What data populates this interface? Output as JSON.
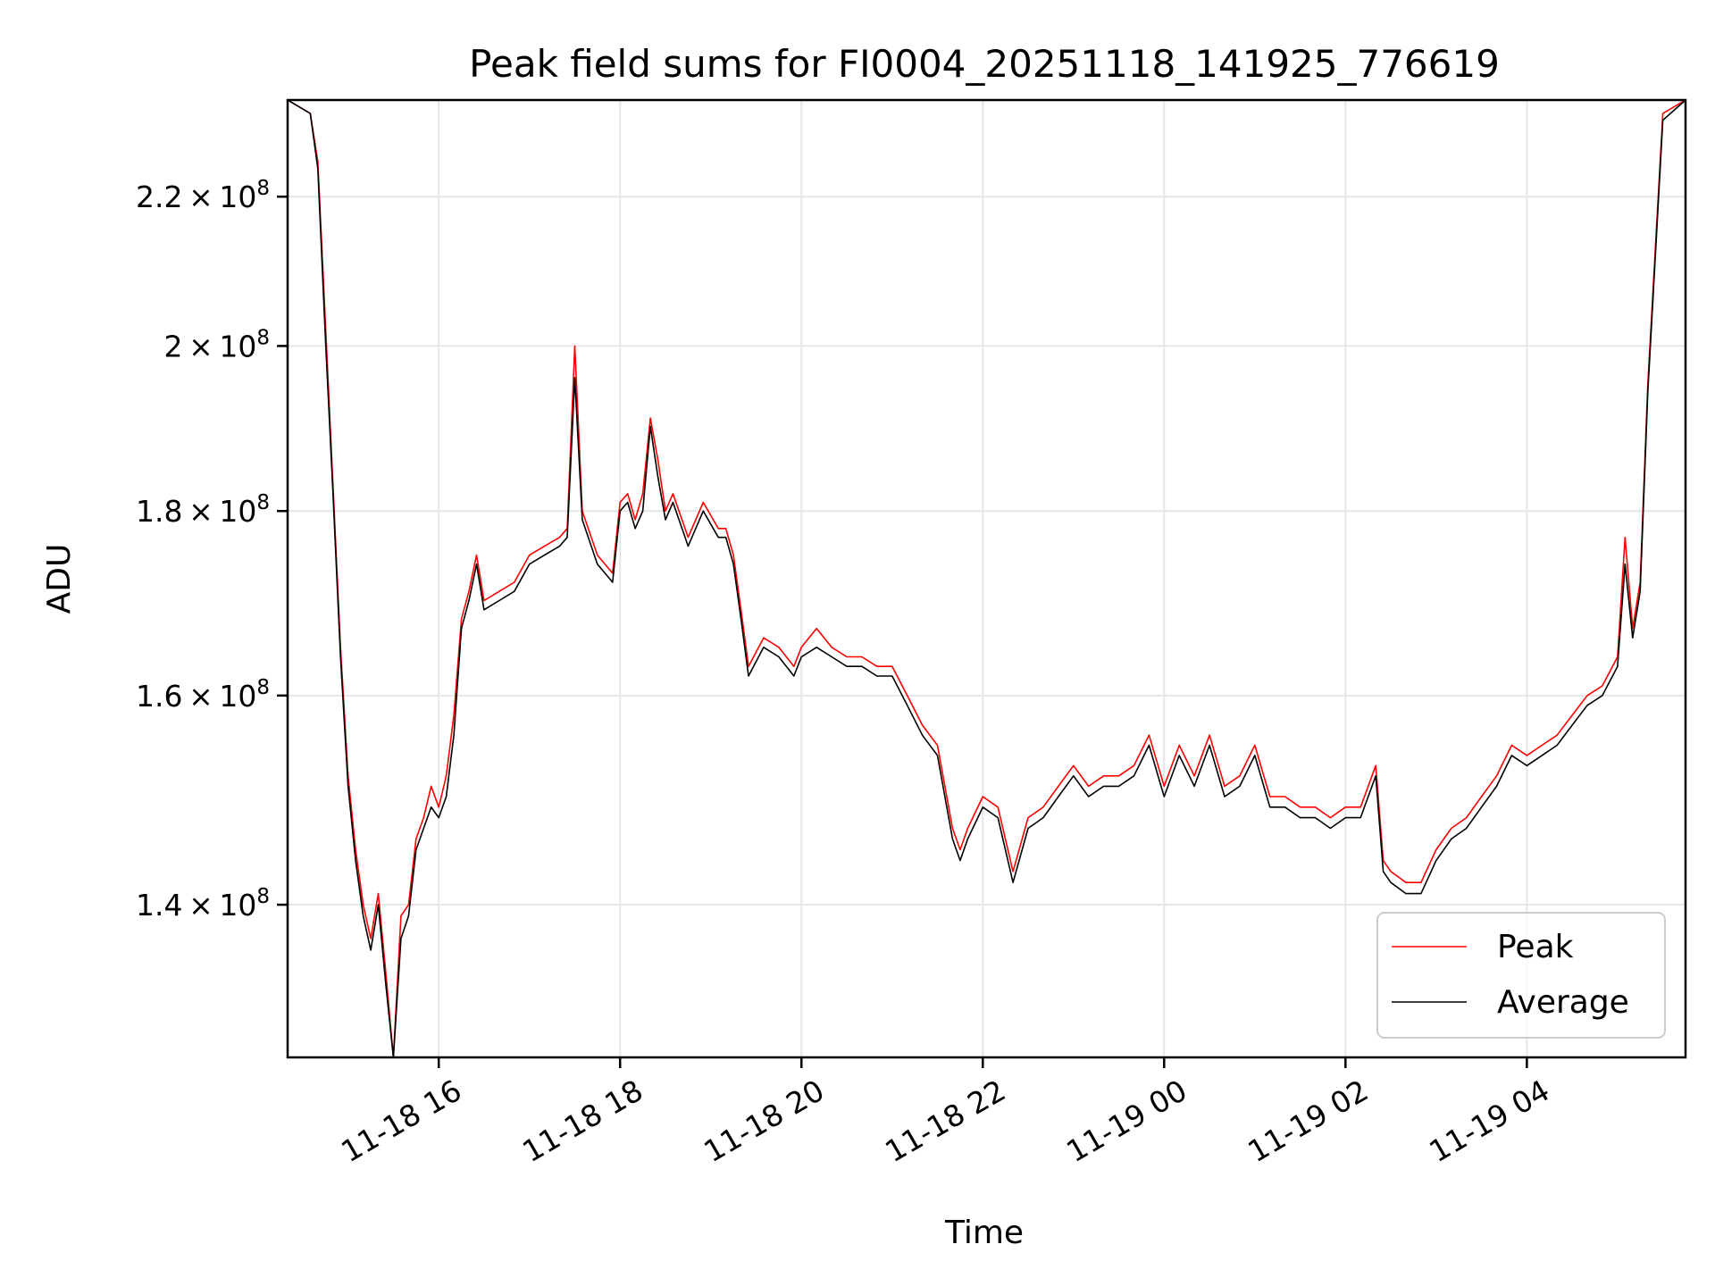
{
  "chart_data": {
    "type": "line",
    "title": "Peak field sums for FI0004_20251118_141925_776619",
    "xlabel": "Time",
    "ylabel": "ADU",
    "y_scale": "log",
    "grid": true,
    "legend_placement": "lower-right",
    "xlim": [
      "2025-11-18 14:20",
      "2025-11-19 05:45"
    ],
    "ylim": [
      127000000,
      234000000
    ],
    "x_ticks": [
      {
        "value": "2025-11-18 16:00",
        "label": "11-18 16"
      },
      {
        "value": "2025-11-18 18:00",
        "label": "11-18 18"
      },
      {
        "value": "2025-11-18 20:00",
        "label": "11-18 20"
      },
      {
        "value": "2025-11-18 22:00",
        "label": "11-18 22"
      },
      {
        "value": "2025-11-19 00:00",
        "label": "11-19 00"
      },
      {
        "value": "2025-11-19 02:00",
        "label": "11-19 02"
      },
      {
        "value": "2025-11-19 04:00",
        "label": "11-19 04"
      }
    ],
    "y_ticks": [
      {
        "value": 140000000,
        "mantissa": "1.4",
        "exponent": "8"
      },
      {
        "value": 160000000,
        "mantissa": "1.6",
        "exponent": "8"
      },
      {
        "value": 180000000,
        "mantissa": "1.8",
        "exponent": "8"
      },
      {
        "value": 200000000,
        "mantissa": "2",
        "exponent": "8"
      },
      {
        "value": 220000000,
        "mantissa": "2.2",
        "exponent": "8"
      }
    ],
    "series": [
      {
        "name": "Peak",
        "color": "#ff0000",
        "x": [
          "2025-11-18 14:20",
          "2025-11-18 14:35",
          "2025-11-18 14:40",
          "2025-11-18 14:45",
          "2025-11-18 14:50",
          "2025-11-18 14:55",
          "2025-11-18 15:00",
          "2025-11-18 15:05",
          "2025-11-18 15:10",
          "2025-11-18 15:15",
          "2025-11-18 15:20",
          "2025-11-18 15:25",
          "2025-11-18 15:30",
          "2025-11-18 15:35",
          "2025-11-18 15:40",
          "2025-11-18 15:45",
          "2025-11-18 15:50",
          "2025-11-18 15:55",
          "2025-11-18 16:00",
          "2025-11-18 16:05",
          "2025-11-18 16:10",
          "2025-11-18 16:15",
          "2025-11-18 16:20",
          "2025-11-18 16:25",
          "2025-11-18 16:30",
          "2025-11-18 16:40",
          "2025-11-18 16:50",
          "2025-11-18 17:00",
          "2025-11-18 17:10",
          "2025-11-18 17:20",
          "2025-11-18 17:25",
          "2025-11-18 17:30",
          "2025-11-18 17:35",
          "2025-11-18 17:45",
          "2025-11-18 17:55",
          "2025-11-18 18:00",
          "2025-11-18 18:05",
          "2025-11-18 18:10",
          "2025-11-18 18:15",
          "2025-11-18 18:20",
          "2025-11-18 18:25",
          "2025-11-18 18:30",
          "2025-11-18 18:35",
          "2025-11-18 18:45",
          "2025-11-18 18:55",
          "2025-11-18 19:05",
          "2025-11-18 19:10",
          "2025-11-18 19:15",
          "2025-11-18 19:20",
          "2025-11-18 19:25",
          "2025-11-18 19:35",
          "2025-11-18 19:45",
          "2025-11-18 19:55",
          "2025-11-18 20:00",
          "2025-11-18 20:10",
          "2025-11-18 20:20",
          "2025-11-18 20:30",
          "2025-11-18 20:40",
          "2025-11-18 20:50",
          "2025-11-18 21:00",
          "2025-11-18 21:10",
          "2025-11-18 21:20",
          "2025-11-18 21:30",
          "2025-11-18 21:40",
          "2025-11-18 21:45",
          "2025-11-18 21:50",
          "2025-11-18 22:00",
          "2025-11-18 22:10",
          "2025-11-18 22:20",
          "2025-11-18 22:30",
          "2025-11-18 22:40",
          "2025-11-18 22:50",
          "2025-11-18 23:00",
          "2025-11-18 23:10",
          "2025-11-18 23:20",
          "2025-11-18 23:30",
          "2025-11-18 23:40",
          "2025-11-18 23:50",
          "2025-11-19 00:00",
          "2025-11-19 00:10",
          "2025-11-19 00:20",
          "2025-11-19 00:30",
          "2025-11-19 00:40",
          "2025-11-19 00:50",
          "2025-11-19 01:00",
          "2025-11-19 01:10",
          "2025-11-19 01:20",
          "2025-11-19 01:30",
          "2025-11-19 01:40",
          "2025-11-19 01:50",
          "2025-11-19 02:00",
          "2025-11-19 02:10",
          "2025-11-19 02:20",
          "2025-11-19 02:25",
          "2025-11-19 02:30",
          "2025-11-19 02:40",
          "2025-11-19 02:50",
          "2025-11-19 03:00",
          "2025-11-19 03:10",
          "2025-11-19 03:20",
          "2025-11-19 03:30",
          "2025-11-19 03:40",
          "2025-11-19 03:50",
          "2025-11-19 04:00",
          "2025-11-19 04:10",
          "2025-11-19 04:20",
          "2025-11-19 04:30",
          "2025-11-19 04:40",
          "2025-11-19 04:50",
          "2025-11-19 05:00",
          "2025-11-19 05:05",
          "2025-11-19 05:10",
          "2025-11-19 05:15",
          "2025-11-19 05:20",
          "2025-11-19 05:30",
          "2025-11-19 05:45"
        ],
        "values": [
          234000000,
          232000000,
          225000000,
          203000000,
          183000000,
          165000000,
          152000000,
          145000000,
          140000000,
          137000000,
          141000000,
          134000000,
          127000000,
          139000000,
          140000000,
          146000000,
          148000000,
          151000000,
          149000000,
          152000000,
          158000000,
          168000000,
          171000000,
          175000000,
          170000000,
          171000000,
          172000000,
          175000000,
          176000000,
          177000000,
          178000000,
          200000000,
          180000000,
          175000000,
          173000000,
          181000000,
          182000000,
          179000000,
          182000000,
          191000000,
          186000000,
          180000000,
          182000000,
          177000000,
          181000000,
          178000000,
          178000000,
          175000000,
          169000000,
          163000000,
          166000000,
          165000000,
          163000000,
          165000000,
          167000000,
          165000000,
          164000000,
          164000000,
          163000000,
          163000000,
          160000000,
          157000000,
          155000000,
          147000000,
          145000000,
          147000000,
          150000000,
          149000000,
          143000000,
          148000000,
          149000000,
          151000000,
          153000000,
          151000000,
          152000000,
          152000000,
          153000000,
          156000000,
          151000000,
          155000000,
          152000000,
          156000000,
          151000000,
          152000000,
          155000000,
          150000000,
          150000000,
          149000000,
          149000000,
          148000000,
          149000000,
          149000000,
          153000000,
          144000000,
          143000000,
          142000000,
          142000000,
          145000000,
          147000000,
          148000000,
          150000000,
          152000000,
          155000000,
          154000000,
          155000000,
          156000000,
          158000000,
          160000000,
          161000000,
          164000000,
          177000000,
          167000000,
          172000000,
          195000000,
          232000000,
          234000000
        ]
      },
      {
        "name": "Average",
        "color": "#000000",
        "x": [
          "2025-11-18 14:20",
          "2025-11-18 14:35",
          "2025-11-18 14:40",
          "2025-11-18 14:45",
          "2025-11-18 14:50",
          "2025-11-18 14:55",
          "2025-11-18 15:00",
          "2025-11-18 15:05",
          "2025-11-18 15:10",
          "2025-11-18 15:15",
          "2025-11-18 15:20",
          "2025-11-18 15:25",
          "2025-11-18 15:30",
          "2025-11-18 15:35",
          "2025-11-18 15:40",
          "2025-11-18 15:45",
          "2025-11-18 15:50",
          "2025-11-18 15:55",
          "2025-11-18 16:00",
          "2025-11-18 16:05",
          "2025-11-18 16:10",
          "2025-11-18 16:15",
          "2025-11-18 16:20",
          "2025-11-18 16:25",
          "2025-11-18 16:30",
          "2025-11-18 16:40",
          "2025-11-18 16:50",
          "2025-11-18 17:00",
          "2025-11-18 17:10",
          "2025-11-18 17:20",
          "2025-11-18 17:25",
          "2025-11-18 17:30",
          "2025-11-18 17:35",
          "2025-11-18 17:45",
          "2025-11-18 17:55",
          "2025-11-18 18:00",
          "2025-11-18 18:05",
          "2025-11-18 18:10",
          "2025-11-18 18:15",
          "2025-11-18 18:20",
          "2025-11-18 18:25",
          "2025-11-18 18:30",
          "2025-11-18 18:35",
          "2025-11-18 18:45",
          "2025-11-18 18:55",
          "2025-11-18 19:05",
          "2025-11-18 19:10",
          "2025-11-18 19:15",
          "2025-11-18 19:20",
          "2025-11-18 19:25",
          "2025-11-18 19:35",
          "2025-11-18 19:45",
          "2025-11-18 19:55",
          "2025-11-18 20:00",
          "2025-11-18 20:10",
          "2025-11-18 20:20",
          "2025-11-18 20:30",
          "2025-11-18 20:40",
          "2025-11-18 20:50",
          "2025-11-18 21:00",
          "2025-11-18 21:10",
          "2025-11-18 21:20",
          "2025-11-18 21:30",
          "2025-11-18 21:40",
          "2025-11-18 21:45",
          "2025-11-18 21:50",
          "2025-11-18 22:00",
          "2025-11-18 22:10",
          "2025-11-18 22:20",
          "2025-11-18 22:30",
          "2025-11-18 22:40",
          "2025-11-18 22:50",
          "2025-11-18 23:00",
          "2025-11-18 23:10",
          "2025-11-18 23:20",
          "2025-11-18 23:30",
          "2025-11-18 23:40",
          "2025-11-18 23:50",
          "2025-11-19 00:00",
          "2025-11-19 00:10",
          "2025-11-19 00:20",
          "2025-11-19 00:30",
          "2025-11-19 00:40",
          "2025-11-19 00:50",
          "2025-11-19 01:00",
          "2025-11-19 01:10",
          "2025-11-19 01:20",
          "2025-11-19 01:30",
          "2025-11-19 01:40",
          "2025-11-19 01:50",
          "2025-11-19 02:00",
          "2025-11-19 02:10",
          "2025-11-19 02:20",
          "2025-11-19 02:25",
          "2025-11-19 02:30",
          "2025-11-19 02:40",
          "2025-11-19 02:50",
          "2025-11-19 03:00",
          "2025-11-19 03:10",
          "2025-11-19 03:20",
          "2025-11-19 03:30",
          "2025-11-19 03:40",
          "2025-11-19 03:50",
          "2025-11-19 04:00",
          "2025-11-19 04:10",
          "2025-11-19 04:20",
          "2025-11-19 04:30",
          "2025-11-19 04:40",
          "2025-11-19 04:50",
          "2025-11-19 05:00",
          "2025-11-19 05:05",
          "2025-11-19 05:10",
          "2025-11-19 05:15",
          "2025-11-19 05:20",
          "2025-11-19 05:30",
          "2025-11-19 05:45"
        ],
        "values": [
          234000000,
          232000000,
          224000000,
          201000000,
          182000000,
          164000000,
          151000000,
          144000000,
          139000000,
          136000000,
          140000000,
          133000000,
          127000000,
          137000000,
          139000000,
          145000000,
          147000000,
          149000000,
          148000000,
          150000000,
          156000000,
          167000000,
          170000000,
          174000000,
          169000000,
          170000000,
          171000000,
          174000000,
          175000000,
          176000000,
          177000000,
          196000000,
          179000000,
          174000000,
          172000000,
          180000000,
          181000000,
          178000000,
          180000000,
          190000000,
          184000000,
          179000000,
          181000000,
          176000000,
          180000000,
          177000000,
          177000000,
          174000000,
          168000000,
          162000000,
          165000000,
          164000000,
          162000000,
          164000000,
          165000000,
          164000000,
          163000000,
          163000000,
          162000000,
          162000000,
          159000000,
          156000000,
          154000000,
          146000000,
          144000000,
          146000000,
          149000000,
          148000000,
          142000000,
          147000000,
          148000000,
          150000000,
          152000000,
          150000000,
          151000000,
          151000000,
          152000000,
          155000000,
          150000000,
          154000000,
          151000000,
          155000000,
          150000000,
          151000000,
          154000000,
          149000000,
          149000000,
          148000000,
          148000000,
          147000000,
          148000000,
          148000000,
          152000000,
          143000000,
          142000000,
          141000000,
          141000000,
          144000000,
          146000000,
          147000000,
          149000000,
          151000000,
          154000000,
          153000000,
          154000000,
          155000000,
          157000000,
          159000000,
          160000000,
          163000000,
          174000000,
          166000000,
          171000000,
          194000000,
          231000000,
          234000000
        ]
      }
    ],
    "legend": [
      {
        "label": "Peak",
        "color": "#ff0000"
      },
      {
        "label": "Average",
        "color": "#000000"
      }
    ]
  }
}
